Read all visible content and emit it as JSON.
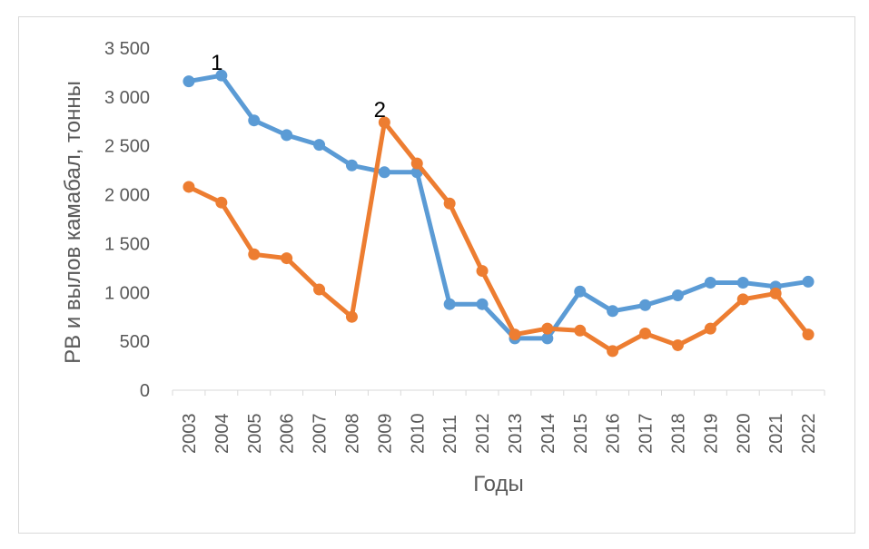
{
  "chart_data": {
    "type": "line",
    "xlabel": "Годы",
    "ylabel": "РВ  и вылов камабал, тонны",
    "ylim": [
      0,
      3500
    ],
    "yticks": [
      0,
      500,
      1000,
      1500,
      2000,
      2500,
      3000,
      3500
    ],
    "ytick_labels": [
      "0",
      "500",
      "1 000",
      "1 500",
      "2 000",
      "2 500",
      "3 000",
      "3 500"
    ],
    "categories": [
      "2003",
      "2004",
      "2005",
      "2006",
      "2007",
      "2008",
      "2009",
      "2010",
      "2011",
      "2012",
      "2013",
      "2014",
      "2015",
      "2016",
      "2017",
      "2018",
      "2019",
      "2020",
      "2021",
      "2022"
    ],
    "series": [
      {
        "color": "#5b9bd5",
        "values": [
          3160,
          3220,
          2760,
          2610,
          2510,
          2300,
          2230,
          2230,
          880,
          880,
          530,
          530,
          1010,
          810,
          870,
          970,
          1100,
          1100,
          1060,
          1110
        ]
      },
      {
        "color": "#ed7d31",
        "values": [
          2080,
          1920,
          1390,
          1350,
          1030,
          750,
          2740,
          2320,
          1910,
          1220,
          570,
          630,
          610,
          400,
          580,
          460,
          630,
          930,
          990,
          570
        ]
      }
    ],
    "annotations": [
      {
        "text": "1",
        "x": "2004",
        "y": 3220
      },
      {
        "text": "2",
        "x": "2009",
        "y": 2740
      }
    ],
    "grid": false,
    "legend": "none"
  }
}
